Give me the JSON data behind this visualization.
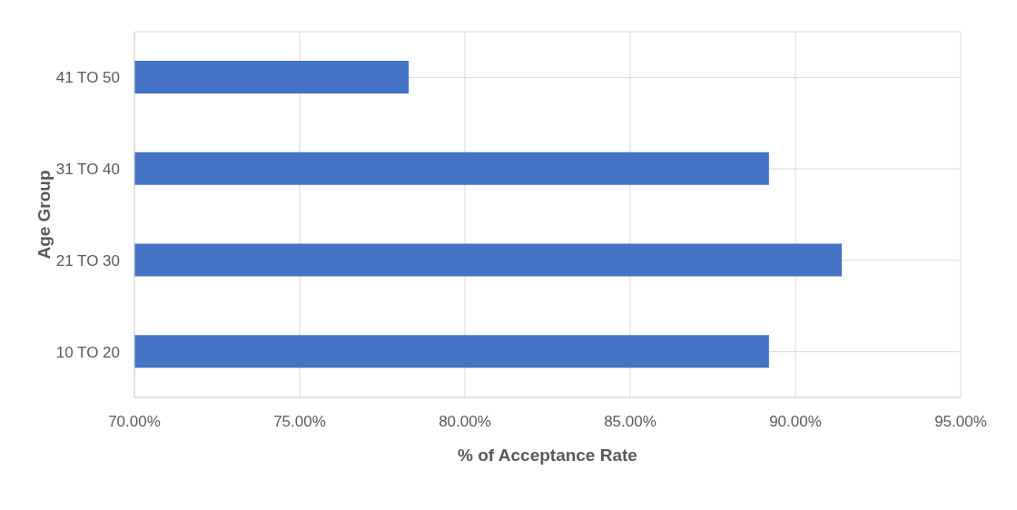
{
  "chart_data": {
    "type": "bar",
    "orientation": "horizontal",
    "xlabel": "% of Acceptance Rate",
    "ylabel": "Age Group",
    "categories": [
      "41 TO 50",
      "31 TO 40",
      "21 TO 30",
      "10 TO 20"
    ],
    "values": [
      78.3,
      89.2,
      91.4,
      89.2
    ],
    "color": "#4472c4",
    "xlim": [
      70,
      95
    ],
    "xticks": [
      {
        "value": 70,
        "label": "70.00%"
      },
      {
        "value": 75,
        "label": "75.00%"
      },
      {
        "value": 80,
        "label": "80.00%"
      },
      {
        "value": 85,
        "label": "85.00%"
      },
      {
        "value": 90,
        "label": "90.00%"
      },
      {
        "value": 95,
        "label": "95.00%"
      }
    ],
    "grid": true
  }
}
